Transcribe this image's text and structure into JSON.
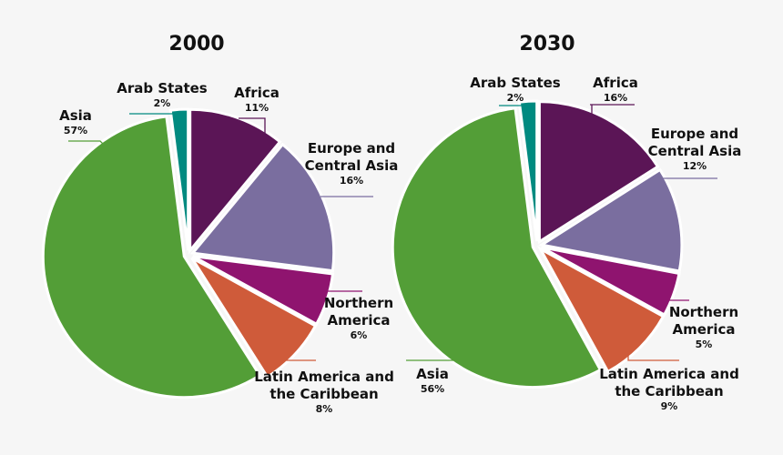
{
  "chart_data": [
    {
      "type": "pie",
      "title": "2000",
      "categories": [
        "Africa",
        "Europe and Central Asia",
        "Northern America",
        "Latin America and the Caribbean",
        "Asia",
        "Arab States"
      ],
      "values": [
        11,
        16,
        6,
        8,
        57,
        2
      ],
      "labels": [
        "11%",
        "16%",
        "6%",
        "8%",
        "57%",
        "2%"
      ]
    },
    {
      "type": "pie",
      "title": "2030",
      "categories": [
        "Africa",
        "Europe and Central Asia",
        "Northern America",
        "Latin America and the Caribbean",
        "Asia",
        "Arab States"
      ],
      "values": [
        16,
        12,
        5,
        9,
        56,
        2
      ],
      "labels": [
        "16%",
        "12%",
        "5%",
        "9%",
        "56%",
        "2%"
      ]
    }
  ],
  "colors": {
    "Africa": "#5b1556",
    "Europe and Central Asia": "#7a6e9f",
    "Northern America": "#8f146f",
    "Latin America and the Caribbean": "#cf5b3a",
    "Asia": "#539e37",
    "Arab States": "#008a80"
  }
}
